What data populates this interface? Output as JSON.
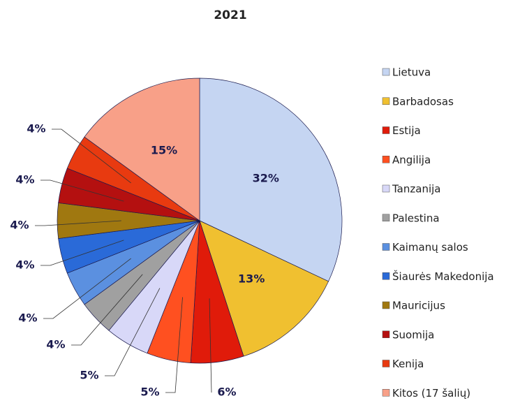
{
  "chart_data": {
    "type": "pie",
    "title": "2021",
    "categories": [
      "Lietuva",
      "Barbadosas",
      "Estija",
      "Angilija",
      "Tanzanija",
      "Palestina",
      "Kaimanų salos",
      "Šiaurės Makedonija",
      "Mauricijus",
      "Suomija",
      "Kenija",
      "Kitos (17 šalių)"
    ],
    "values": [
      32,
      13,
      6,
      5,
      5,
      4,
      4,
      4,
      4,
      4,
      4,
      15
    ],
    "value_labels": [
      "32%",
      "13%",
      "6%",
      "5%",
      "5%",
      "4%",
      "4%",
      "4%",
      "4%",
      "4%",
      "4%",
      "15%"
    ],
    "colors": [
      "#c5d5f2",
      "#f0c030",
      "#e01b0a",
      "#ff5020",
      "#d8d8f8",
      "#a0a0a0",
      "#5b90e0",
      "#2a6ad8",
      "#a07810",
      "#b41010",
      "#e83a10",
      "#f8a088"
    ],
    "legend": "right"
  }
}
